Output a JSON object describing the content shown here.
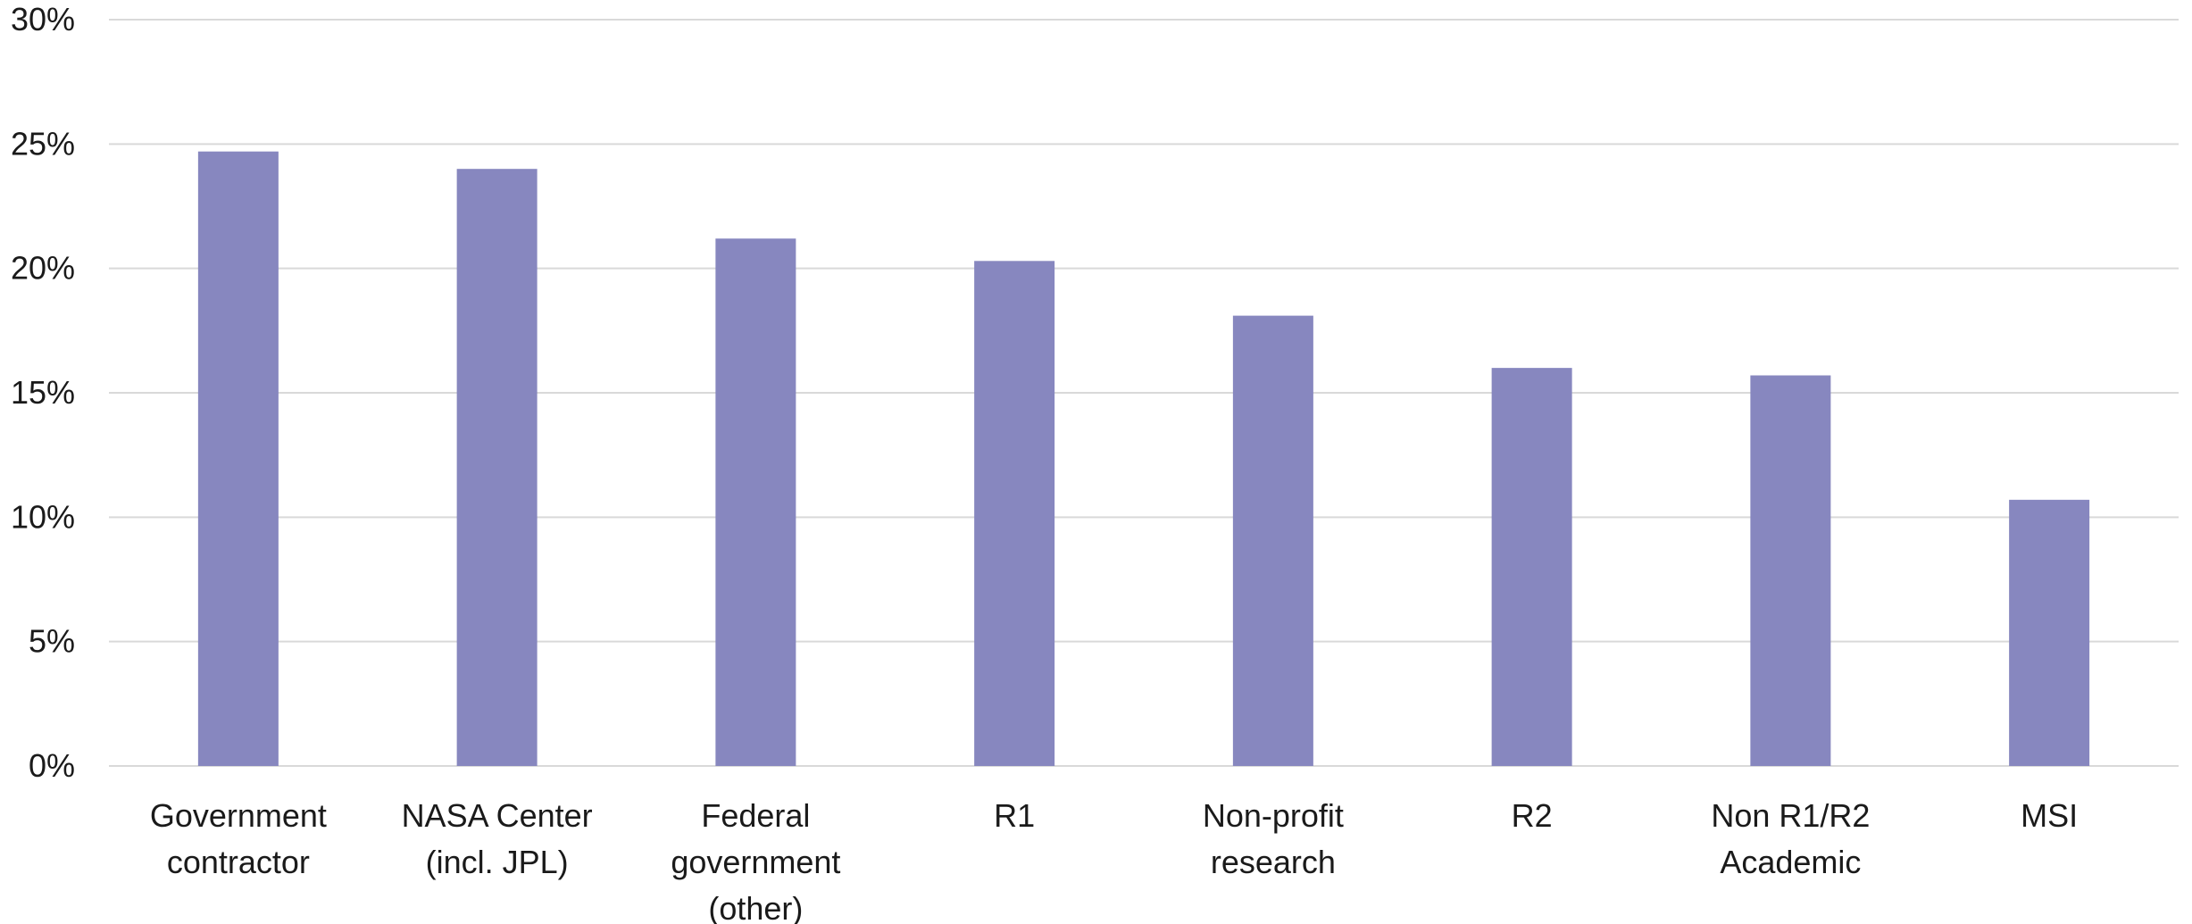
{
  "chart_data": {
    "type": "bar",
    "categories": [
      [
        "Government",
        "contractor"
      ],
      [
        "NASA Center",
        "(incl. JPL)"
      ],
      [
        "Federal",
        "government",
        "(other)"
      ],
      [
        "R1"
      ],
      [
        "Non-profit",
        "research"
      ],
      [
        "R2"
      ],
      [
        "Non R1/R2",
        "Academic"
      ],
      [
        "MSI"
      ]
    ],
    "values": [
      24.7,
      24.0,
      21.2,
      20.3,
      18.1,
      16.0,
      15.7,
      10.7
    ],
    "ylim": [
      0,
      30
    ],
    "yticks": [
      0,
      5,
      10,
      15,
      20,
      25,
      30
    ],
    "ytick_labels": [
      "0%",
      "5%",
      "10%",
      "15%",
      "20%",
      "25%",
      "30%"
    ],
    "title": "",
    "xlabel": "",
    "ylabel": "",
    "grid": true,
    "legend": "none",
    "bar_color": "#8787bf"
  }
}
